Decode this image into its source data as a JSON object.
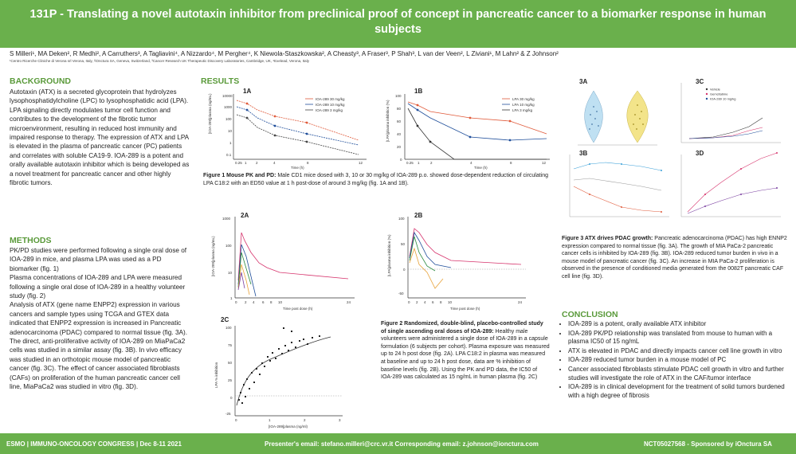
{
  "header": {
    "title": "131P - Translating a novel autotaxin inhibitor from preclinical proof of concept in pancreatic cancer to a biomarker response in human subjects"
  },
  "authors": "S Milleri¹, MA Deken², R Medhi², A Carruthers³, A Tagliavini⁴, A Nizzardo⁴, M Pergher⁴, K Niewola-Staszkowska², A Cheasty³, A Fraser³, P Shah³, L van der Veen², L Ziviani¹, M Lahn² & Z Johnson²",
  "affiliations": "¹Centro Ricerche Cliniche di Verona srl Verona, Italy, ²iOnctura SA, Geneva, Switzerland, ³Cancer Research UK Therapeutic Discovery Laboratories, Cambridge, UK, ⁴Exelead, Verona, Italy",
  "background": {
    "heading": "BACKGROUND",
    "text": "Autotaxin (ATX) is a secreted glycoprotein that hydrolyzes lysophosphatidylcholine (LPC) to lysophosphatidic acid (LPA). LPA signaling directly modulates tumor cell function and contributes to the development of the fibrotic tumor microenvironment, resulting in reduced host immunity and impaired response to therapy. The expression of ATX and LPA is elevated in the plasma of pancreatic cancer (PC) patients and correlates with soluble CA19-9. IOA-289 is a potent and orally available autotaxin inhibitor which is being developed as a novel treatment for pancreatic cancer and other highly fibrotic tumors."
  },
  "methods": {
    "heading": "METHODS",
    "paragraphs": [
      "PK/PD studies were performed following a single oral dose of IOA-289 in mice, and plasma LPA was used as a PD biomarker (fig. 1)",
      "Plasma concentrations of IOA-289 and LPA were measured following a single oral dose of IOA-289 in a healthy volunteer study (fig. 2)",
      "Analysis of ATX (gene name ENPP2) expression in various cancers and sample types using TCGA and GTEX data indicated that ENPP2 expression is increased in Pancreatic adenocarcinoma (PDAC) compared to normal tissue (fig. 3A). The direct, anti-proliferative activity of IOA-289 on MiaPaCa2 cells was studied in a similar assay (fig. 3B). In vivo efficacy was studied in an orthotopic mouse model of pancreatic cancer (fig. 3C). The effect of cancer associated fibroblasts (CAFs) on proliferation of the human pancreatic cancer cell line, MiaPaCa2 was studied in vitro (fig. 3D)."
    ]
  },
  "results": {
    "heading": "RESULTS",
    "fig1A": {
      "label": "1A",
      "ylabel": "[IOA-289]plasma (ng/mL)",
      "xlabel": "Time (h)",
      "legend": [
        "IOA-289 30 mg/kg",
        "IOA-289 10 mg/kg",
        "IOA-289 3 mg/kg"
      ]
    },
    "fig1B": {
      "label": "1B",
      "ylabel": "[LPA]plasma inhibition (%)",
      "xlabel": "Time (h)",
      "legend": [
        "LPA 30 mg/kg",
        "LPA 10 mg/kg",
        "LPA 3 mg/kg"
      ]
    },
    "fig1_caption_bold": "Figure 1 Mouse PK and PD:",
    "fig1_caption": " Male CD1 mice dosed with 3, 10 or 30 mg/kg of IOA-289 p.o. showed dose-dependent reduction of circulating LPA C18:2 with an ED50 value at 1 h post-dose of around 3 mg/kg (fig. 1A and 1B).",
    "fig2A": {
      "label": "2A",
      "ylabel": "[IOA-289]plasma (ng/mL)",
      "xlabel": "Time post dose (h)"
    },
    "fig2B": {
      "label": "2B",
      "ylabel": "[LPA]plasma inhibition (%)",
      "xlabel": "Time post dose (h)"
    },
    "fig2C": {
      "label": "2C",
      "ylabel": "LPA % inhibition",
      "xlabel": "[IOA-289]plasma (ng/ml)"
    },
    "fig2_caption_bold": "Figure 2 Randomized, double-blind, placebo-controlled study of single ascending oral doses of IOA-289:",
    "fig2_caption": " Healthy male volunteers were administered a single dose of IOA-289 in a capsule formulation (6 subjects per cohort). Plasma exposure was measured up to 24 h post dose (fig. 2A). LPA C18:2 in plasma was measured at baseline and up to 24 h post dose, data are % inhibition of baseline levels (fig. 2B). Using the PK and PD data, the IC50 of IOA-289 was calculated as 15 ng/mL in human plasma (fig. 2C)",
    "fig3A": {
      "label": "3A"
    },
    "fig3B": {
      "label": "3B"
    },
    "fig3C": {
      "label": "3C",
      "legend": [
        "Vehicle",
        "Gemcitabine",
        "IOA-289 10 mg/kg"
      ]
    },
    "fig3D": {
      "label": "3D"
    },
    "fig3_caption_bold": "Figure 3 ATX drives PDAC growth:",
    "fig3_caption": " Pancreatic adenocarcinoma (PDAC) has high ENNP2 expression compared to normal tissue (fig. 3A). The growth of MIA PaCa-2 pancreatic cancer cells is inhibited by IOA-289 (fig. 3B). IOA-289 reduced tumor burden in vivo in a mouse model of pancreatic cancer (fig. 3C). An increase in MIA PaCa-2 proliferation is observed in the presence of conditioned media generated from the 0082T pancreatic CAF cell line (fig. 3D)."
  },
  "conclusion": {
    "heading": "CONCLUSION",
    "items": [
      "IOA-289 is a potent, orally available ATX inhibitor",
      "IOA-289 PK/PD relationship was translated from mouse to human with a plasma IC50 of 15 ng/mL",
      "ATX is elevated in PDAC and directly impacts cancer cell line growth in vitro",
      "IOA-289 reduced tumor burden in a mouse model of PC",
      "Cancer associated fibroblasts stimulate PDAC cell growth in vitro and further studies will investigate the role of ATX in the CAF/tumor interface",
      "IOA-289 is in clinical development for the treatment of solid tumors burdened with a high degree of fibrosis"
    ]
  },
  "footer": {
    "left": "ESMO | IMMUNO-ONCOLOGY CONGRESS | Dec 8-11 2021",
    "center": "Presenter's email: stefano.milleri@crc.vr.it  Corresponding email: z.johnson@ionctura.com",
    "right": "NCT05027568 - Sponsored by iOnctura SA"
  },
  "colors": {
    "green": "#6ab04c",
    "heading_green": "#5a9a3a"
  }
}
